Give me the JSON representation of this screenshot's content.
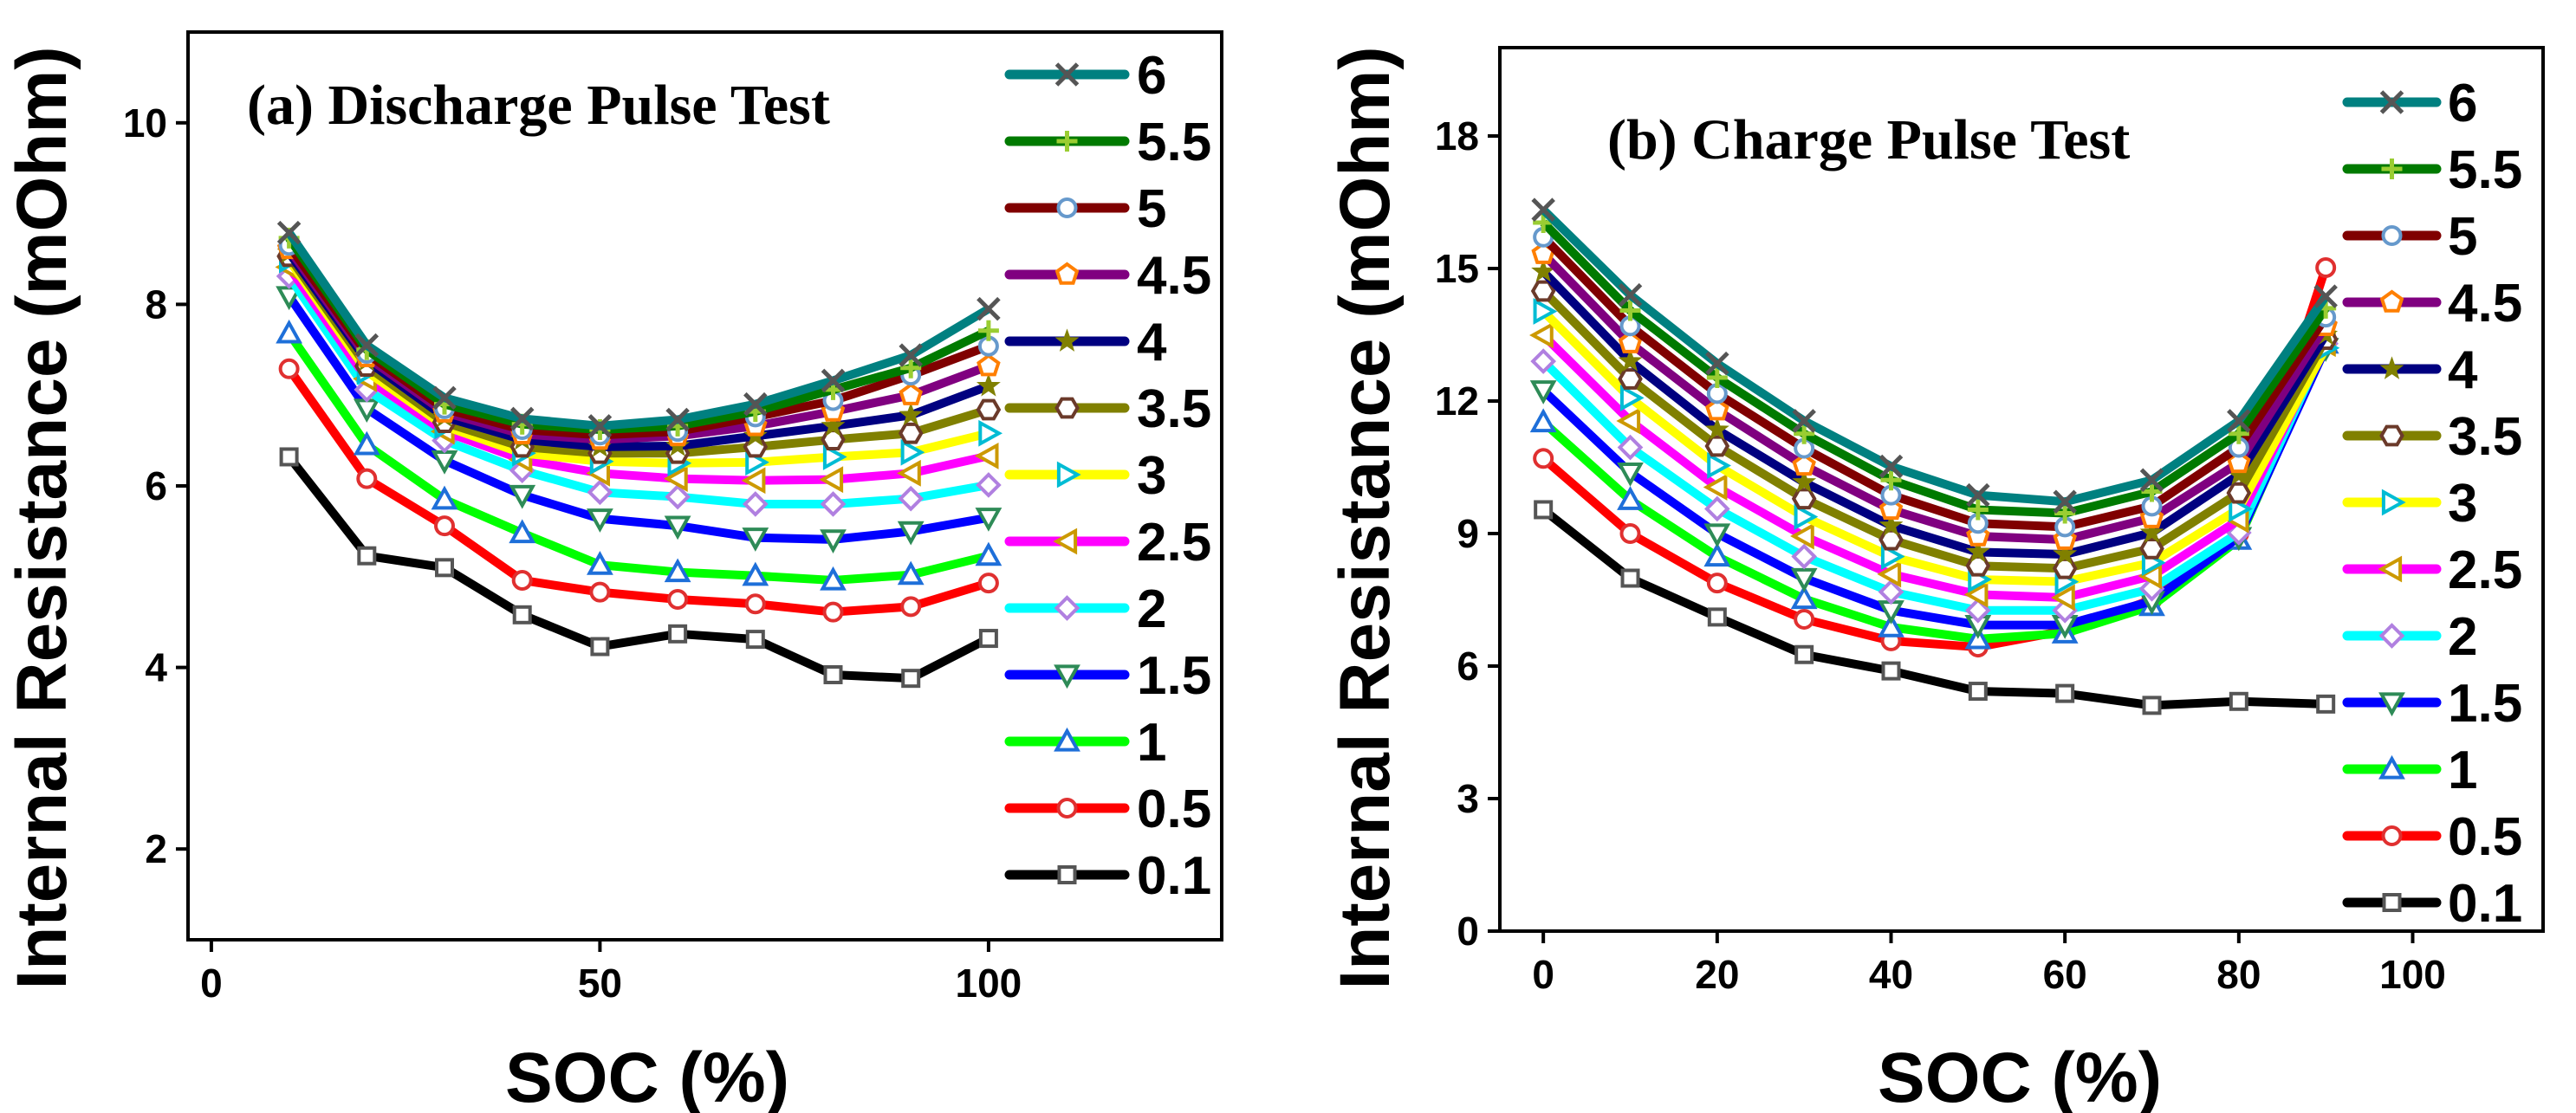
{
  "legend_colors": {
    "6": {
      "line": "#008080",
      "marker": "#555555",
      "shape": "x"
    },
    "5.5": {
      "line": "#007a00",
      "marker": "#9acd32",
      "shape": "plus"
    },
    "5": {
      "line": "#800000",
      "marker": "#6699cc",
      "shape": "circle"
    },
    "4.5": {
      "line": "#800080",
      "marker": "#ff7f00",
      "shape": "pentagon"
    },
    "4": {
      "line": "#000080",
      "marker": "#808000",
      "shape": "star"
    },
    "3.5": {
      "line": "#808000",
      "marker": "#6b3a2a",
      "shape": "hexagon"
    },
    "3": {
      "line": "#ffff00",
      "marker": "#00bcd4",
      "shape": "tri-right"
    },
    "2.5": {
      "line": "#ff00ff",
      "marker": "#cc9900",
      "shape": "tri-left"
    },
    "2": {
      "line": "#00ffff",
      "marker": "#b080e0",
      "shape": "diamond"
    },
    "1.5": {
      "line": "#0000ff",
      "marker": "#2e8b57",
      "shape": "tri-down"
    },
    "1": {
      "line": "#00ff00",
      "marker": "#1e6fd9",
      "shape": "tri-up"
    },
    "0.5": {
      "line": "#ff0000",
      "marker": "#e03030",
      "shape": "circle"
    },
    "0.1": {
      "line": "#000000",
      "marker": "#555555",
      "shape": "square"
    }
  },
  "chart_data": [
    {
      "type": "line",
      "title": "(a) Discharge Pulse Test",
      "xlabel": "SOC (%)",
      "ylabel": "Internal Resistance (mOhm)",
      "xlim": [
        -3,
        130
      ],
      "ylim": [
        1,
        11
      ],
      "xticks": [
        "0",
        "50",
        "100"
      ],
      "yticks": [
        "2",
        "4",
        "6",
        "8",
        "10"
      ],
      "legend_position": "right",
      "x": [
        10,
        20,
        30,
        40,
        50,
        60,
        70,
        80,
        90,
        100
      ],
      "series": [
        {
          "name": "6",
          "values": [
            8.79,
            7.55,
            6.97,
            6.74,
            6.66,
            6.73,
            6.9,
            7.16,
            7.44,
            7.95
          ]
        },
        {
          "name": "5.5",
          "values": [
            8.73,
            7.5,
            6.9,
            6.68,
            6.62,
            6.66,
            6.82,
            7.06,
            7.3,
            7.71
          ]
        },
        {
          "name": "5",
          "values": [
            8.65,
            7.46,
            6.85,
            6.62,
            6.56,
            6.6,
            6.76,
            6.94,
            7.22,
            7.54
          ]
        },
        {
          "name": "4.5",
          "values": [
            8.61,
            7.42,
            6.81,
            6.57,
            6.51,
            6.55,
            6.66,
            6.82,
            7.0,
            7.32
          ]
        },
        {
          "name": "4",
          "values": [
            8.57,
            7.38,
            6.76,
            6.51,
            6.43,
            6.44,
            6.55,
            6.66,
            6.78,
            7.1
          ]
        },
        {
          "name": "3.5",
          "values": [
            8.53,
            7.32,
            6.7,
            6.43,
            6.36,
            6.36,
            6.43,
            6.51,
            6.58,
            6.84
          ]
        },
        {
          "name": "3",
          "values": [
            8.49,
            7.26,
            6.66,
            6.36,
            6.27,
            6.25,
            6.26,
            6.32,
            6.37,
            6.58
          ]
        },
        {
          "name": "2.5",
          "values": [
            8.41,
            7.18,
            6.6,
            6.29,
            6.14,
            6.08,
            6.06,
            6.07,
            6.14,
            6.33
          ]
        },
        {
          "name": "2",
          "values": [
            8.31,
            7.06,
            6.5,
            6.17,
            5.93,
            5.88,
            5.8,
            5.8,
            5.86,
            6.01
          ]
        },
        {
          "name": "1.5",
          "values": [
            8.09,
            6.85,
            6.28,
            5.9,
            5.64,
            5.56,
            5.43,
            5.41,
            5.5,
            5.65
          ]
        },
        {
          "name": "1",
          "values": [
            7.68,
            6.45,
            5.85,
            5.48,
            5.13,
            5.05,
            5.01,
            4.96,
            5.02,
            5.23
          ]
        },
        {
          "name": "0.5",
          "values": [
            7.29,
            6.08,
            5.56,
            4.96,
            4.83,
            4.75,
            4.7,
            4.61,
            4.67,
            4.93
          ]
        },
        {
          "name": "0.1",
          "values": [
            6.32,
            5.23,
            5.1,
            4.58,
            4.23,
            4.37,
            4.31,
            3.92,
            3.88,
            4.32
          ]
        }
      ]
    },
    {
      "type": "line",
      "title": "(b) Charge Pulse Test",
      "xlabel": "SOC (%)",
      "ylabel": "Internal Resistance (mOhm)",
      "xlim": [
        -5,
        115
      ],
      "ylim": [
        0,
        20
      ],
      "xticks": [
        "0",
        "20",
        "40",
        "60",
        "80",
        "100"
      ],
      "yticks": [
        "0",
        "3",
        "6",
        "9",
        "12",
        "15",
        "18"
      ],
      "legend_position": "right",
      "x": [
        0,
        10,
        20,
        30,
        40,
        50,
        60,
        70,
        80,
        90
      ],
      "series": [
        {
          "name": "6",
          "values": [
            16.33,
            14.4,
            12.85,
            11.55,
            10.52,
            9.87,
            9.72,
            10.21,
            11.55,
            14.37
          ]
        },
        {
          "name": "5.5",
          "values": [
            16.04,
            14.05,
            12.53,
            11.26,
            10.21,
            9.54,
            9.46,
            9.95,
            11.26,
            14.1
          ]
        },
        {
          "name": "5",
          "values": [
            15.71,
            13.7,
            12.17,
            10.93,
            9.87,
            9.23,
            9.15,
            9.62,
            10.95,
            13.9
          ]
        },
        {
          "name": "4.5",
          "values": [
            15.33,
            13.31,
            11.79,
            10.54,
            9.54,
            8.94,
            8.86,
            9.35,
            10.6,
            13.7
          ]
        },
        {
          "name": "4",
          "values": [
            14.93,
            12.9,
            11.35,
            10.16,
            9.18,
            8.58,
            8.53,
            9.02,
            10.33,
            13.5
          ]
        },
        {
          "name": "3.5",
          "values": [
            14.49,
            12.5,
            10.98,
            9.79,
            8.86,
            8.27,
            8.21,
            8.66,
            9.92,
            13.4
          ]
        },
        {
          "name": "3",
          "values": [
            14.03,
            12.07,
            10.54,
            9.38,
            8.48,
            7.96,
            7.91,
            8.34,
            9.56,
            13.2
          ]
        },
        {
          "name": "2.5",
          "values": [
            13.49,
            11.55,
            10.05,
            8.94,
            8.08,
            7.62,
            7.55,
            8.04,
            9.31,
            13.3
          ]
        },
        {
          "name": "2",
          "values": [
            12.9,
            10.95,
            9.56,
            8.48,
            7.68,
            7.26,
            7.26,
            7.75,
            9.02,
            13.3
          ]
        },
        {
          "name": "1.5",
          "values": [
            12.24,
            10.38,
            9.0,
            7.99,
            7.26,
            6.93,
            6.93,
            7.47,
            8.92,
            13.2
          ]
        },
        {
          "name": "1",
          "values": [
            11.52,
            9.76,
            8.48,
            7.52,
            6.88,
            6.61,
            6.74,
            7.36,
            8.86,
            13.3
          ]
        },
        {
          "name": "0.5",
          "values": [
            10.7,
            9.0,
            7.88,
            7.06,
            6.57,
            6.43,
            6.8,
            7.5,
            9.0,
            15.02
          ]
        },
        {
          "name": "0.1",
          "values": [
            9.54,
            7.99,
            7.11,
            6.26,
            5.89,
            5.43,
            5.38,
            5.11,
            5.2,
            5.14
          ]
        }
      ]
    }
  ]
}
